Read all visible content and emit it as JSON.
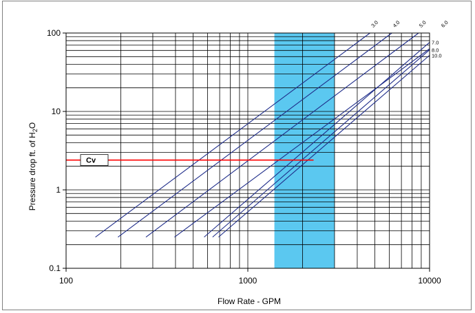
{
  "chart_data": {
    "type": "line",
    "title": "",
    "xlabel": "Flow Rate - GPM",
    "ylabel_parts": {
      "main": "Pressure drop ft. of H",
      "subscript": "2",
      "tail": "O"
    },
    "x_scale": "log",
    "y_scale": "log",
    "xlim": [
      100,
      10000
    ],
    "ylim": [
      0.1,
      100
    ],
    "x_ticks": [
      100,
      1000,
      10000
    ],
    "x_tick_labels": [
      "100",
      "1000",
      "10000"
    ],
    "y_ticks": [
      0.1,
      1,
      10,
      100
    ],
    "y_tick_labels": [
      "0.1",
      "1",
      "10",
      "100"
    ],
    "grid": true,
    "legend": "none",
    "highlight_band": {
      "x_from": 1400,
      "x_to": 3000,
      "color": "#5bc8f0"
    },
    "reference_line": {
      "label": "Cv",
      "y": 2.4,
      "x_from": 100,
      "x_to": 2300,
      "color": "#ff0000"
    },
    "line_color": "#1f2d8a",
    "series": [
      {
        "name": "3.0",
        "points": [
          [
            145,
            0.25
          ],
          [
            4700,
            100
          ]
        ]
      },
      {
        "name": "4.0",
        "points": [
          [
            193,
            0.25
          ],
          [
            6200,
            100
          ]
        ]
      },
      {
        "name": "5.0",
        "points": [
          [
            275,
            0.25
          ],
          [
            8700,
            100
          ]
        ]
      },
      {
        "name": "6.0",
        "points": [
          [
            395,
            0.25
          ],
          [
            10000,
            63
          ]
        ]
      },
      {
        "name": "7.0",
        "points": [
          [
            575,
            0.25
          ],
          [
            10000,
            76
          ]
        ]
      },
      {
        "name": "8.0",
        "points": [
          [
            640,
            0.25
          ],
          [
            10000,
            61
          ]
        ]
      },
      {
        "name": "10.0",
        "points": [
          [
            690,
            0.25
          ],
          [
            10000,
            52
          ]
        ]
      }
    ],
    "series_label_anchor": [
      {
        "name": "3.0",
        "x": 4900,
        "y": 112,
        "rotate": -45
      },
      {
        "name": "4.0",
        "x": 6450,
        "y": 112,
        "rotate": -45
      },
      {
        "name": "5.0",
        "x": 9000,
        "y": 112,
        "rotate": -45
      },
      {
        "name": "6.0",
        "x": 11900,
        "y": 112,
        "rotate": -45
      },
      {
        "name": "7.0",
        "x": 10000,
        "y": 76,
        "rotate": 0
      },
      {
        "name": "8.0",
        "x": 10000,
        "y": 61,
        "rotate": 0
      },
      {
        "name": "10.0",
        "x": 10000,
        "y": 52,
        "rotate": 0
      }
    ]
  }
}
